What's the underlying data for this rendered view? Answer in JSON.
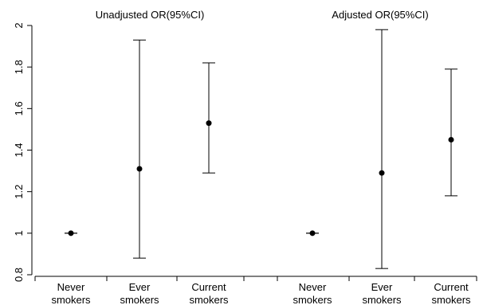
{
  "chart_data": {
    "type": "scatter",
    "subtype": "error-bar",
    "panels": [
      {
        "title": "Unadjusted OR(95%CI)",
        "categories": [
          {
            "line1": "Never",
            "line2": "smokers"
          },
          {
            "line1": "Ever",
            "line2": "smokers"
          },
          {
            "line1": "Current",
            "line2": "smokers"
          }
        ],
        "points": [
          {
            "estimate": 1.0,
            "lower": 1.0,
            "upper": 1.0
          },
          {
            "estimate": 1.31,
            "lower": 0.88,
            "upper": 1.93
          },
          {
            "estimate": 1.53,
            "lower": 1.29,
            "upper": 1.82
          }
        ]
      },
      {
        "title": "Adjusted OR(95%CI)",
        "categories": [
          {
            "line1": "Never",
            "line2": "smokers"
          },
          {
            "line1": "Ever",
            "line2": "smokers"
          },
          {
            "line1": "Current",
            "line2": "smokers"
          }
        ],
        "points": [
          {
            "estimate": 1.0,
            "lower": 1.0,
            "upper": 1.0
          },
          {
            "estimate": 1.29,
            "lower": 0.83,
            "upper": 1.98
          },
          {
            "estimate": 1.45,
            "lower": 1.18,
            "upper": 1.79
          }
        ]
      }
    ],
    "y_axis": {
      "ylim": [
        0.8,
        2.0
      ],
      "ticks": [
        0.8,
        1.0,
        1.2,
        1.4,
        1.6,
        1.8,
        2.0
      ],
      "tick_labels": [
        "0.8",
        "1",
        "1.2",
        "1.4",
        "1.6",
        "1.8",
        "2"
      ]
    },
    "grid": false,
    "legend": "none"
  }
}
